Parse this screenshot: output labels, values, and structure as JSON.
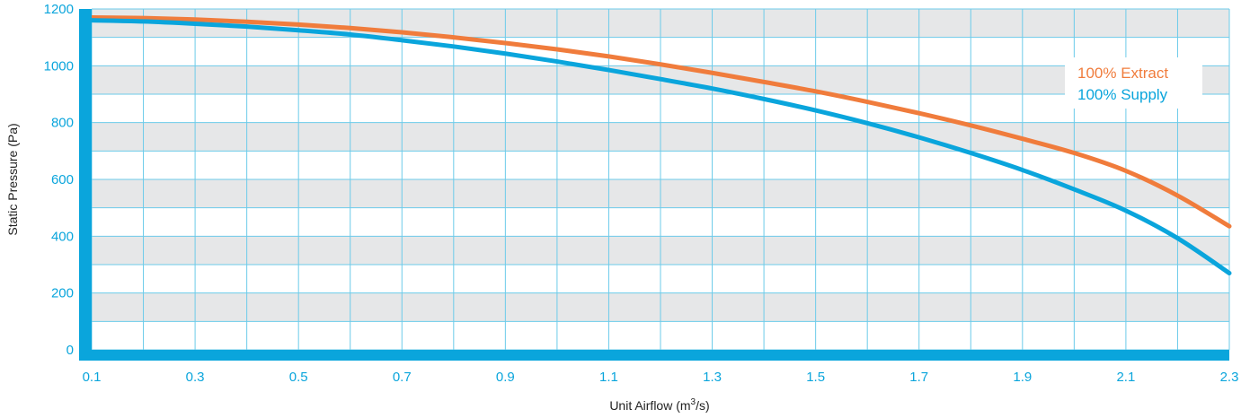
{
  "chart_data": {
    "type": "line",
    "xlabel": "Unit Airflow (m",
    "xlabel_sup": "3",
    "xlabel_suffix": "/s)",
    "ylabel": "Static Pressure (Pa)",
    "xlim": [
      0.1,
      2.3
    ],
    "ylim": [
      0,
      1200
    ],
    "x_ticks": [
      "0.1",
      "0.3",
      "0.5",
      "0.7",
      "0.9",
      "1.1",
      "1.3",
      "1.5",
      "1.7",
      "1.9",
      "2.1",
      "2.3"
    ],
    "y_ticks": [
      "0",
      "200",
      "400",
      "600",
      "800",
      "1000",
      "1200"
    ],
    "grid": true,
    "legend_position": "top-right",
    "series": [
      {
        "name": "100% Extract",
        "color": "#f07c3c",
        "x": [
          0.1,
          0.2,
          0.3,
          0.4,
          0.5,
          0.6,
          0.7,
          0.8,
          0.9,
          1.0,
          1.1,
          1.2,
          1.3,
          1.4,
          1.5,
          1.6,
          1.7,
          1.8,
          1.9,
          2.0,
          2.1,
          2.2,
          2.3
        ],
        "y": [
          1170,
          1168,
          1163,
          1155,
          1145,
          1133,
          1118,
          1100,
          1080,
          1058,
          1033,
          1005,
          975,
          943,
          910,
          873,
          833,
          790,
          743,
          693,
          630,
          543,
          435
        ]
      },
      {
        "name": "100% Supply",
        "color": "#0aa5dc",
        "x": [
          0.1,
          0.2,
          0.3,
          0.4,
          0.5,
          0.6,
          0.7,
          0.8,
          0.9,
          1.0,
          1.1,
          1.2,
          1.3,
          1.4,
          1.5,
          1.6,
          1.7,
          1.8,
          1.9,
          2.0,
          2.1,
          2.2,
          2.3
        ],
        "y": [
          1160,
          1156,
          1148,
          1138,
          1125,
          1110,
          1090,
          1068,
          1043,
          1015,
          985,
          953,
          920,
          883,
          843,
          798,
          748,
          693,
          633,
          565,
          490,
          393,
          270
        ]
      }
    ]
  }
}
